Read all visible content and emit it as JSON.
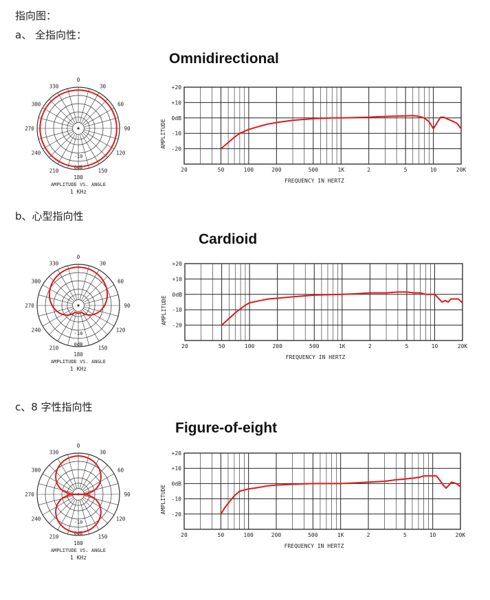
{
  "header": {
    "heading": "指向图："
  },
  "sections": [
    {
      "label": "a、 全指向性：",
      "title": "Omnidirectional",
      "polar_caption": "AMPLITUDE VS. ANGLE",
      "polar_freq": "1 KHz",
      "polar_angles": [
        "0",
        "30",
        "60",
        "90",
        "120",
        "150",
        "180",
        "210",
        "240",
        "270",
        "300",
        "330"
      ],
      "polar_ring_labels": [
        "-10",
        "0dB"
      ],
      "response_ylabel": "AMPLITUDE",
      "response_xlabel": "FREQUENCY IN HERTZ"
    },
    {
      "label": "b、心型指向性",
      "title": "Cardioid",
      "polar_caption": "AMPLITUDE VS. ANGLE",
      "polar_freq": "1 KHz",
      "polar_angles": [
        "0",
        "30",
        "60",
        "90",
        "120",
        "150",
        "180",
        "210",
        "240",
        "270",
        "300",
        "330"
      ],
      "polar_ring_labels": [
        "-10",
        "0dB"
      ],
      "response_ylabel": "AMPLITUDE",
      "response_xlabel": "FREQUENCY IN HERTZ"
    },
    {
      "label": "c、8 字性指向性",
      "title": "Figure-of-eight",
      "polar_caption": "AMPLITUDE VS. ANGLE",
      "polar_freq": "1 KHz",
      "polar_angles": [
        "0",
        "30",
        "60",
        "90",
        "120",
        "150",
        "180",
        "210",
        "240",
        "270",
        "300",
        "330"
      ],
      "polar_ring_labels": [
        "-10",
        "0dB"
      ],
      "response_ylabel": "AMPLITUDE",
      "response_xlabel": "FREQUENCY IN HERTZ"
    }
  ],
  "chart_data": [
    {
      "type": "line",
      "title": "Omnidirectional",
      "xlabel": "FREQUENCY IN HERTZ",
      "ylabel": "AMPLITUDE",
      "xscale": "log",
      "xlim": [
        20,
        20000
      ],
      "ylim": [
        -30,
        20
      ],
      "x_tick_labels": [
        "20",
        "50",
        "100",
        "200",
        "500",
        "1K",
        "2",
        "5",
        "10",
        "20K"
      ],
      "y_tick_labels": [
        "+20",
        "+10",
        "0dB",
        "-10",
        "-20"
      ],
      "color": "#e01818",
      "series": [
        {
          "x": [
            50,
            60,
            70,
            80,
            100,
            130,
            160,
            200,
            300,
            500,
            800,
            1000,
            1500,
            2000,
            2500,
            3000,
            4000,
            5000,
            6000,
            7000,
            8000,
            9000,
            10000,
            11000,
            12000,
            13000,
            14000,
            16000,
            18000,
            20000
          ],
          "y": [
            -20,
            -16,
            -12.5,
            -10,
            -7.5,
            -5.5,
            -4,
            -3,
            -1.5,
            -0.5,
            0,
            0,
            0.3,
            0.5,
            0.8,
            1,
            1.2,
            1.3,
            1.5,
            1,
            0,
            -2.5,
            -7,
            -3,
            0.5,
            0.5,
            -0.5,
            -2,
            -3.5,
            -7
          ]
        }
      ]
    },
    {
      "type": "line",
      "title": "Cardioid",
      "xlabel": "FREQUENCY IN HERTZ",
      "ylabel": "AMPLITUDE",
      "xscale": "log",
      "xlim": [
        20,
        20000
      ],
      "ylim": [
        -30,
        20
      ],
      "x_tick_labels": [
        "20",
        "50",
        "100",
        "200",
        "500",
        "1K",
        "2",
        "5",
        "10",
        "20K"
      ],
      "y_tick_labels": [
        "+20",
        "+10",
        "0dB",
        "-10",
        "-20"
      ],
      "color": "#e01818",
      "series": [
        {
          "x": [
            50,
            70,
            90,
            100,
            130,
            160,
            200,
            300,
            500,
            1000,
            1500,
            2000,
            3000,
            4000,
            5000,
            6000,
            7000,
            8000,
            9000,
            10000,
            11000,
            12000,
            13000,
            14000,
            15000,
            16000,
            18000,
            20000
          ],
          "y": [
            -20,
            -12,
            -7,
            -5.5,
            -4,
            -3,
            -2.5,
            -1.5,
            -0.5,
            0,
            0.5,
            1,
            1,
            1.5,
            1.5,
            1,
            1,
            0,
            0,
            0,
            -2.5,
            -5,
            -4,
            -5,
            -3,
            -3,
            -3,
            -5.5
          ]
        }
      ]
    },
    {
      "type": "line",
      "title": "Figure-of-eight",
      "xlabel": "FREQUENCY IN HERTZ",
      "ylabel": "AMPLITUDE",
      "xscale": "log",
      "xlim": [
        20,
        20000
      ],
      "ylim": [
        -30,
        20
      ],
      "x_tick_labels": [
        "20",
        "50",
        "100",
        "200",
        "500",
        "1K",
        "2",
        "5",
        "10",
        "20K"
      ],
      "y_tick_labels": [
        "+20",
        "+10",
        "0dB",
        "-10",
        "-20"
      ],
      "color": "#e01818",
      "series": [
        {
          "x": [
            50,
            55,
            60,
            70,
            80,
            100,
            130,
            160,
            200,
            300,
            500,
            1000,
            1500,
            2000,
            3000,
            4000,
            5000,
            6000,
            7000,
            8000,
            9000,
            10000,
            11000,
            12000,
            13000,
            14000,
            15000,
            16000,
            18000,
            20000
          ],
          "y": [
            -20,
            -16,
            -13,
            -8,
            -5,
            -3.5,
            -2.5,
            -1.5,
            -1,
            -0.5,
            0,
            0,
            0.5,
            1,
            1.5,
            2.5,
            3,
            3.5,
            4,
            5,
            5,
            5,
            5,
            2,
            -1,
            -3,
            -1,
            1,
            0,
            -2
          ]
        }
      ]
    }
  ],
  "polar_data": [
    {
      "pattern": "omnidirectional",
      "radius_db": [
        0,
        0,
        0,
        0,
        0,
        0,
        0,
        0,
        0,
        0,
        0,
        0
      ]
    },
    {
      "pattern": "cardioid"
    },
    {
      "pattern": "figure-of-eight"
    }
  ]
}
